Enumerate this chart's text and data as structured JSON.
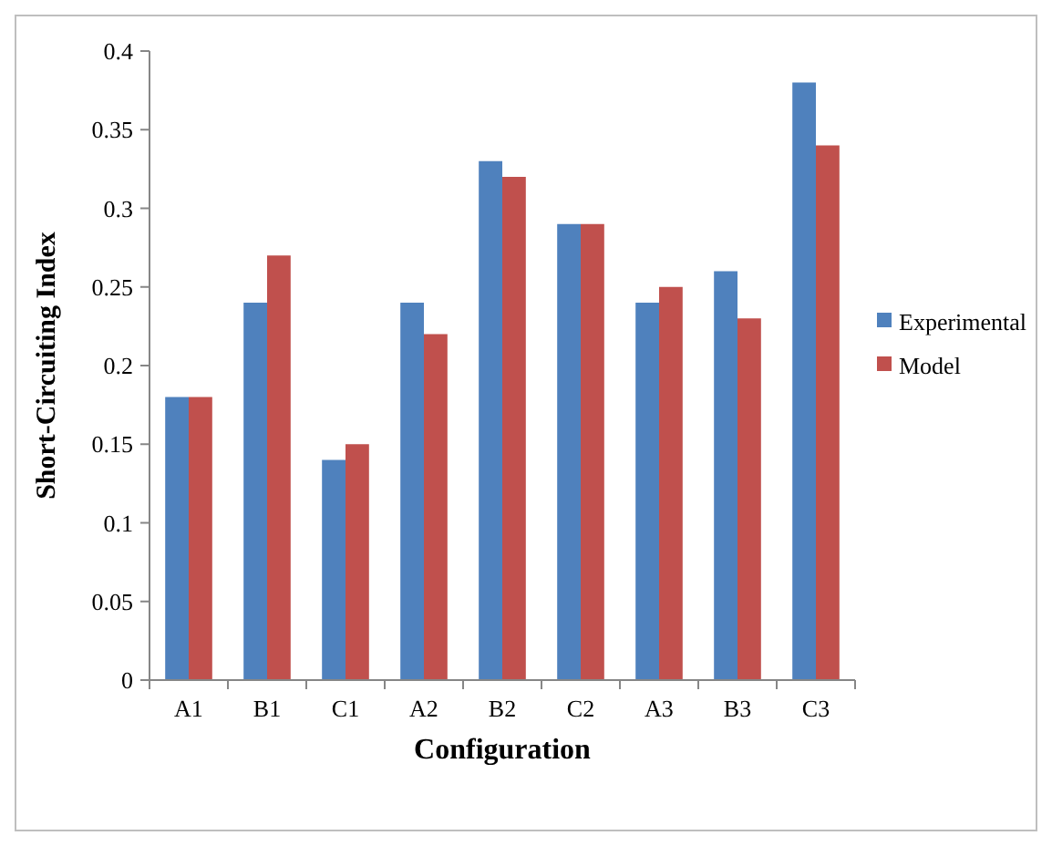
{
  "chart_data": {
    "type": "bar",
    "xlabel": "Configuration",
    "ylabel": "Short-Circuiting Index",
    "categories": [
      "A1",
      "B1",
      "C1",
      "A2",
      "B2",
      "C2",
      "A3",
      "B3",
      "C3"
    ],
    "series": [
      {
        "name": "Experimental",
        "color": "#4f81bd",
        "values": [
          0.18,
          0.24,
          0.14,
          0.24,
          0.33,
          0.29,
          0.24,
          0.26,
          0.38
        ]
      },
      {
        "name": "Model",
        "color": "#c0504d",
        "values": [
          0.18,
          0.27,
          0.15,
          0.22,
          0.32,
          0.29,
          0.25,
          0.23,
          0.34
        ]
      }
    ],
    "ylim": [
      0,
      0.4
    ],
    "yticks": [
      {
        "value": 0,
        "label": "0"
      },
      0.05,
      0.1,
      0.15,
      0.2,
      0.25,
      0.3,
      0.35,
      0.4
    ],
    "legend": "right"
  }
}
